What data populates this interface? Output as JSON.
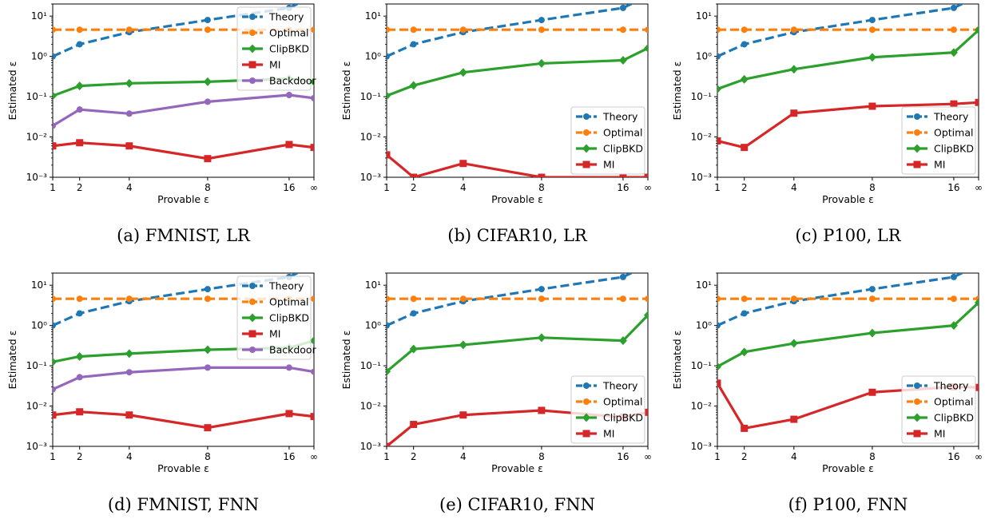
{
  "colors": {
    "Theory": "#1f77b4",
    "Optimal": "#ff7f0e",
    "ClipBKD": "#2ca02c",
    "MI": "#d62728",
    "Backdoor": "#9467bd"
  },
  "chart_data": [
    {
      "type": "line",
      "caption": "(a) FMNIST, LR",
      "xlabel": "Provable ε",
      "ylabel": "Estimated ε",
      "yscale": "log",
      "ylim": [
        0.001,
        20
      ],
      "x": [
        "1",
        "2",
        "4",
        "8",
        "16",
        "∞"
      ],
      "ytick_labels": [
        "10⁻³",
        "10⁻²",
        "10⁻¹",
        "10⁰",
        "10¹"
      ],
      "legend": "top-right",
      "series": [
        {
          "name": "Theory",
          "style": "dashed",
          "marker": "circle",
          "values": [
            1,
            2,
            4,
            8,
            16,
            32
          ]
        },
        {
          "name": "Optimal",
          "style": "dashed",
          "marker": "circle",
          "values": [
            4.6,
            4.6,
            4.6,
            4.6,
            4.6,
            4.6
          ]
        },
        {
          "name": "ClipBKD",
          "style": "solid",
          "marker": "diamond",
          "values": [
            0.105,
            0.185,
            0.215,
            0.235,
            0.28,
            0.235
          ]
        },
        {
          "name": "MI",
          "style": "solid",
          "marker": "square",
          "values": [
            0.006,
            0.0072,
            0.006,
            0.0029,
            0.0065,
            0.0055
          ]
        },
        {
          "name": "Backdoor",
          "style": "solid",
          "marker": "circle",
          "values": [
            0.019,
            0.048,
            0.038,
            0.075,
            0.11,
            0.092
          ]
        }
      ]
    },
    {
      "type": "line",
      "caption": "(b) CIFAR10, LR",
      "xlabel": "Provable ε",
      "ylabel": "Estimated ε",
      "yscale": "log",
      "ylim": [
        0.001,
        20
      ],
      "x": [
        "1",
        "2",
        "4",
        "8",
        "16",
        "∞"
      ],
      "ytick_labels": [
        "10⁻³",
        "10⁻²",
        "10⁻¹",
        "10⁰",
        "10¹"
      ],
      "legend": "bottom-right",
      "series": [
        {
          "name": "Theory",
          "style": "dashed",
          "marker": "circle",
          "values": [
            1,
            2,
            4,
            8,
            16,
            32
          ]
        },
        {
          "name": "Optimal",
          "style": "dashed",
          "marker": "circle",
          "values": [
            4.6,
            4.6,
            4.6,
            4.6,
            4.6,
            4.6
          ]
        },
        {
          "name": "ClipBKD",
          "style": "solid",
          "marker": "diamond",
          "values": [
            0.105,
            0.19,
            0.4,
            0.67,
            0.8,
            1.6
          ]
        },
        {
          "name": "MI",
          "style": "solid",
          "marker": "square",
          "values": [
            0.0036,
            0.001,
            0.0022,
            0.001,
            0.001,
            0.001
          ]
        }
      ]
    },
    {
      "type": "line",
      "caption": "(c) P100, LR",
      "xlabel": "Provable ε",
      "ylabel": "Estimated ε",
      "yscale": "log",
      "ylim": [
        0.001,
        20
      ],
      "x": [
        "1",
        "2",
        "4",
        "8",
        "16",
        "∞"
      ],
      "ytick_labels": [
        "10⁻³",
        "10⁻²",
        "10⁻¹",
        "10⁰",
        "10¹"
      ],
      "legend": "bottom-right",
      "series": [
        {
          "name": "Theory",
          "style": "dashed",
          "marker": "circle",
          "values": [
            1,
            2,
            4,
            8,
            16,
            32
          ]
        },
        {
          "name": "Optimal",
          "style": "dashed",
          "marker": "circle",
          "values": [
            4.6,
            4.6,
            4.6,
            4.6,
            4.6,
            4.6
          ]
        },
        {
          "name": "ClipBKD",
          "style": "solid",
          "marker": "diamond",
          "values": [
            0.155,
            0.27,
            0.48,
            0.95,
            1.25,
            4.5
          ]
        },
        {
          "name": "MI",
          "style": "solid",
          "marker": "square",
          "values": [
            0.008,
            0.0055,
            0.039,
            0.058,
            0.066,
            0.072
          ]
        }
      ]
    },
    {
      "type": "line",
      "caption": "(d) FMNIST, FNN",
      "xlabel": "Provable ε",
      "ylabel": "Estimated ε",
      "yscale": "log",
      "ylim": [
        0.001,
        20
      ],
      "x": [
        "1",
        "2",
        "4",
        "8",
        "16",
        "∞"
      ],
      "ytick_labels": [
        "10⁻³",
        "10⁻²",
        "10⁻¹",
        "10⁰",
        "10¹"
      ],
      "legend": "top-right",
      "series": [
        {
          "name": "Theory",
          "style": "dashed",
          "marker": "circle",
          "values": [
            1,
            2,
            4,
            8,
            16,
            32
          ]
        },
        {
          "name": "Optimal",
          "style": "dashed",
          "marker": "circle",
          "values": [
            4.6,
            4.6,
            4.6,
            4.6,
            4.6,
            4.6
          ]
        },
        {
          "name": "ClipBKD",
          "style": "solid",
          "marker": "diamond",
          "values": [
            0.125,
            0.17,
            0.2,
            0.25,
            0.28,
            0.42
          ]
        },
        {
          "name": "MI",
          "style": "solid",
          "marker": "square",
          "values": [
            0.006,
            0.0072,
            0.006,
            0.0029,
            0.0065,
            0.0055
          ]
        },
        {
          "name": "Backdoor",
          "style": "solid",
          "marker": "circle",
          "values": [
            0.026,
            0.052,
            0.069,
            0.09,
            0.09,
            0.071
          ]
        }
      ]
    },
    {
      "type": "line",
      "caption": "(e) CIFAR10, FNN",
      "xlabel": "Provable ε",
      "ylabel": "Estimated ε",
      "yscale": "log",
      "ylim": [
        0.001,
        20
      ],
      "x": [
        "1",
        "2",
        "4",
        "8",
        "16",
        "∞"
      ],
      "ytick_labels": [
        "10⁻³",
        "10⁻²",
        "10⁻¹",
        "10⁰",
        "10¹"
      ],
      "legend": "bottom-right",
      "series": [
        {
          "name": "Theory",
          "style": "dashed",
          "marker": "circle",
          "values": [
            1,
            2,
            4,
            8,
            16,
            32
          ]
        },
        {
          "name": "Optimal",
          "style": "dashed",
          "marker": "circle",
          "values": [
            4.6,
            4.6,
            4.6,
            4.6,
            4.6,
            4.6
          ]
        },
        {
          "name": "ClipBKD",
          "style": "solid",
          "marker": "diamond",
          "values": [
            0.072,
            0.26,
            0.33,
            0.5,
            0.42,
            1.8
          ]
        },
        {
          "name": "MI",
          "style": "solid",
          "marker": "square",
          "values": [
            0.001,
            0.0035,
            0.006,
            0.0078,
            0.0053,
            0.007
          ]
        }
      ]
    },
    {
      "type": "line",
      "caption": "(f) P100, FNN",
      "xlabel": "Provable ε",
      "ylabel": "Estimated ε",
      "yscale": "log",
      "ylim": [
        0.001,
        20
      ],
      "x": [
        "1",
        "2",
        "4",
        "8",
        "16",
        "∞"
      ],
      "ytick_labels": [
        "10⁻³",
        "10⁻²",
        "10⁻¹",
        "10⁰",
        "10¹"
      ],
      "legend": "bottom-right",
      "series": [
        {
          "name": "Theory",
          "style": "dashed",
          "marker": "circle",
          "values": [
            1,
            2,
            4,
            8,
            16,
            32
          ]
        },
        {
          "name": "Optimal",
          "style": "dashed",
          "marker": "circle",
          "values": [
            4.6,
            4.6,
            4.6,
            4.6,
            4.6,
            4.6
          ]
        },
        {
          "name": "ClipBKD",
          "style": "solid",
          "marker": "diamond",
          "values": [
            0.095,
            0.22,
            0.36,
            0.65,
            1.0,
            3.7
          ]
        },
        {
          "name": "MI",
          "style": "solid",
          "marker": "square",
          "values": [
            0.037,
            0.0028,
            0.0047,
            0.022,
            0.03,
            0.029
          ]
        }
      ]
    }
  ]
}
